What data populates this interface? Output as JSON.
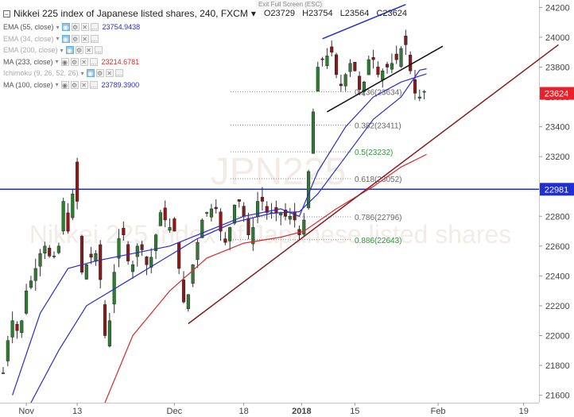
{
  "exit_label": "Exit Full Screen (ESC)",
  "header": {
    "symbol": "Nikkei 225 index of Japanese listed shares, 240, FXCM",
    "open": "O23729",
    "high": "H23754",
    "low": "L23564",
    "close": "C23624"
  },
  "indicators": [
    {
      "name": "EMA (55, close)",
      "value": "23754.9438",
      "color": "#2b2bd0",
      "faded": false,
      "eye": true
    },
    {
      "name": "EMA (34, close)",
      "value": "",
      "color": "#999999",
      "faded": true,
      "eye": true
    },
    {
      "name": "EMA (200, close)",
      "value": "",
      "color": "#999999",
      "faded": true,
      "eye": true
    },
    {
      "name": "MA (233, close)",
      "value": "23214.6781",
      "color": "#d62b2b",
      "faded": false,
      "eye": false
    },
    {
      "name": "Ichimoku (9, 26, 52, 26)",
      "value": "",
      "color": "#999999",
      "faded": true,
      "eye": true
    },
    {
      "name": "MA (100, close)",
      "value": "23789.3900",
      "color": "#2b2bd0",
      "faded": false,
      "eye": false
    }
  ],
  "watermark": {
    "line1": "JPN225",
    "line2": "Nikkei 225 index of Japanese listed shares"
  },
  "price_badges": [
    {
      "label": "23624",
      "value": 23624,
      "color": "#e8212b"
    },
    {
      "label": "22981",
      "value": 22981,
      "color": "#1f2fd6"
    }
  ],
  "chart_data": {
    "type": "candlestick",
    "ylim": [
      21550,
      24250
    ],
    "y_ticks": [
      "21600",
      "21800",
      "22000",
      "22200",
      "22400",
      "22600",
      "22800",
      "23000",
      "23200",
      "23400",
      "23600",
      "23800",
      "24000",
      "24200"
    ],
    "x_ticks": [
      {
        "label": "Nov",
        "bold": false
      },
      {
        "label": "13",
        "bold": false
      },
      {
        "label": "Dec",
        "bold": false
      },
      {
        "label": "18",
        "bold": false
      },
      {
        "label": "2018",
        "bold": true
      },
      {
        "label": "15",
        "bold": false
      },
      {
        "label": "Feb",
        "bold": false
      },
      {
        "label": "19",
        "bold": false
      }
    ],
    "price_path": [
      [
        0,
        21750
      ],
      [
        0.5,
        21900
      ],
      [
        2,
        22100
      ],
      [
        3.5,
        22000
      ],
      [
        5,
        22300
      ],
      [
        6.5,
        22400
      ],
      [
        8,
        22550
      ],
      [
        9,
        22600
      ],
      [
        10.5,
        22500
      ],
      [
        12,
        22600
      ],
      [
        13,
        22900
      ],
      [
        14,
        22700
      ],
      [
        15,
        22950
      ],
      [
        15.5,
        23300
      ],
      [
        16.5,
        22500
      ],
      [
        17.5,
        22350
      ],
      [
        18.5,
        22600
      ],
      [
        19.5,
        22450
      ],
      [
        20.5,
        22650
      ],
      [
        21.5,
        22100
      ],
      [
        22.5,
        21900
      ],
      [
        23.5,
        22300
      ],
      [
        24.5,
        22550
      ],
      [
        25.5,
        22750
      ],
      [
        26.5,
        22600
      ],
      [
        27.5,
        22400
      ],
      [
        28.5,
        22550
      ],
      [
        29.5,
        22650
      ],
      [
        30.5,
        22500
      ],
      [
        31.5,
        22450
      ],
      [
        32.5,
        22600
      ],
      [
        33.5,
        22750
      ],
      [
        34.5,
        22900
      ],
      [
        35.5,
        22650
      ],
      [
        36.5,
        22800
      ],
      [
        37.5,
        22600
      ],
      [
        38.5,
        22300
      ],
      [
        39.5,
        22150
      ],
      [
        40.5,
        22400
      ],
      [
        41.5,
        22550
      ],
      [
        42.5,
        22700
      ],
      [
        43.5,
        22850
      ],
      [
        44.5,
        22800
      ],
      [
        45.5,
        22900
      ],
      [
        46.5,
        22800
      ],
      [
        47.5,
        22600
      ],
      [
        48.5,
        22650
      ],
      [
        49.5,
        22800
      ],
      [
        50.5,
        22950
      ],
      [
        51.5,
        22850
      ],
      [
        52.5,
        22750
      ],
      [
        53.5,
        22600
      ],
      [
        54.5,
        22850
      ],
      [
        55.5,
        22950
      ],
      [
        56.5,
        22850
      ],
      [
        57.5,
        22800
      ],
      [
        58.5,
        22850
      ],
      [
        59.5,
        22800
      ],
      [
        60.5,
        22850
      ],
      [
        61.5,
        22750
      ],
      [
        62.5,
        22850
      ],
      [
        63.5,
        22700
      ],
      [
        64.5,
        22650
      ],
      [
        65.5,
        22900
      ],
      [
        66.5,
        23300
      ],
      [
        67.5,
        23700
      ],
      [
        68.5,
        23900
      ],
      [
        69.5,
        23800
      ],
      [
        70.5,
        23950
      ],
      [
        71.5,
        23850
      ],
      [
        72.5,
        23650
      ],
      [
        73.5,
        23700
      ],
      [
        74.5,
        23800
      ],
      [
        75.5,
        23850
      ],
      [
        76.5,
        23700
      ],
      [
        77.5,
        23600
      ],
      [
        78.5,
        23800
      ],
      [
        79.5,
        23900
      ],
      [
        80.5,
        23800
      ],
      [
        81.5,
        23700
      ],
      [
        82.5,
        23850
      ],
      [
        83.5,
        23750
      ],
      [
        84.5,
        23900
      ],
      [
        85.5,
        23800
      ],
      [
        86.5,
        24050
      ],
      [
        87.5,
        23850
      ],
      [
        88.5,
        23700
      ],
      [
        89.5,
        23550
      ],
      [
        90.5,
        23650
      ],
      [
        91.5,
        23624
      ]
    ],
    "bar_count": 92,
    "x_tick_index": [
      5,
      16,
      37,
      52,
      64.5,
      76,
      94,
      112.5
    ],
    "series": [
      {
        "name": "EMA (55, close)",
        "color": "#2b2bd0",
        "points": [
          [
            2,
            21600
          ],
          [
            8,
            22150
          ],
          [
            14,
            22450
          ],
          [
            20,
            22500
          ],
          [
            28,
            22550
          ],
          [
            36,
            22600
          ],
          [
            44,
            22700
          ],
          [
            52,
            22800
          ],
          [
            60,
            22850
          ],
          [
            64,
            22800
          ],
          [
            68,
            23100
          ],
          [
            74,
            23400
          ],
          [
            80,
            23600
          ],
          [
            86,
            23700
          ],
          [
            91.5,
            23755
          ]
        ]
      },
      {
        "name": "MA (233, close)",
        "color": "#d62b2b",
        "points": [
          [
            22,
            21550
          ],
          [
            28,
            22000
          ],
          [
            36,
            22300
          ],
          [
            44,
            22520
          ],
          [
            52,
            22620
          ],
          [
            60,
            22660
          ],
          [
            65,
            22700
          ],
          [
            72,
            22850
          ],
          [
            80,
            23000
          ],
          [
            86,
            23130
          ],
          [
            91.5,
            23215
          ]
        ]
      },
      {
        "name": "MA (100, close)",
        "color": "#2b2bd0",
        "points": [
          [
            6,
            21550
          ],
          [
            12,
            21900
          ],
          [
            18,
            22200
          ],
          [
            26,
            22350
          ],
          [
            34,
            22500
          ],
          [
            42,
            22650
          ],
          [
            50,
            22760
          ],
          [
            58,
            22820
          ],
          [
            64,
            22830
          ],
          [
            68,
            22950
          ],
          [
            74,
            23200
          ],
          [
            80,
            23450
          ],
          [
            86,
            23600
          ],
          [
            90,
            23780
          ],
          [
            91.5,
            23789
          ]
        ]
      }
    ],
    "fib_levels": [
      {
        "label": "0.236(23634)",
        "value": 23634,
        "color": "#666666"
      },
      {
        "label": "0.382(23411)",
        "value": 23411,
        "color": "#666666"
      },
      {
        "label": "0.5(23232)",
        "value": 23232,
        "color": "#2e9a3a"
      },
      {
        "label": "0.618(23052)",
        "value": 23052,
        "color": "#666666"
      },
      {
        "label": "0.786(22796)",
        "value": 22796,
        "color": "#666666"
      },
      {
        "label": "0.886(22643)",
        "value": 22643,
        "color": "#2e9a3a"
      }
    ],
    "hline": {
      "value": 22981,
      "color": "#1f2fd6"
    },
    "trendlines": [
      {
        "name": "support",
        "color": "#8b1a1a",
        "from": [
          40,
          22080
        ],
        "to": [
          120,
          23950
        ]
      },
      {
        "name": "channel-top",
        "color": "#1f2fd6",
        "from": [
          69,
          23990
        ],
        "to": [
          87,
          24220
        ]
      },
      {
        "name": "channel-bottom",
        "color": "#111111",
        "from": [
          70,
          23500
        ],
        "to": [
          95,
          23940
        ]
      }
    ]
  }
}
